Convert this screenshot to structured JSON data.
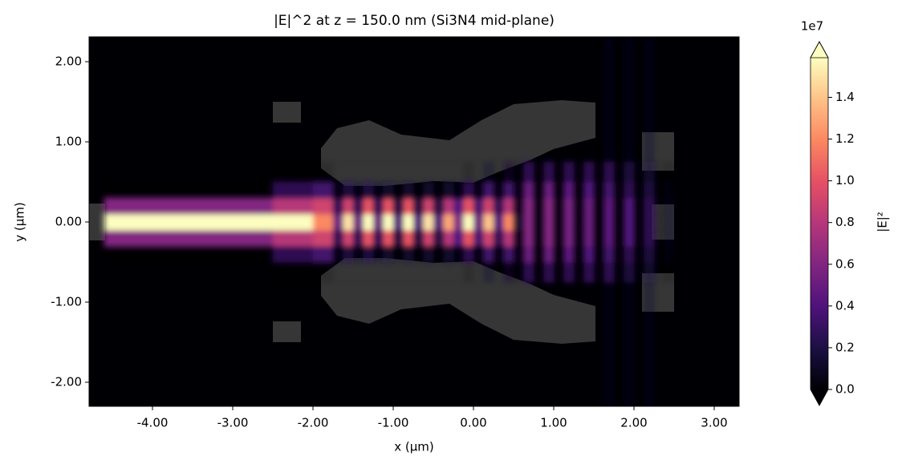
{
  "chart_data": {
    "type": "heatmap",
    "title": "|E|^2 at z = 150.0 nm (Si3N4 mid-plane)",
    "x_label": "x (µm)",
    "y_label": "y (µm)",
    "xlim": [
      -4.79,
      3.31
    ],
    "ylim": [
      -2.3,
      2.31
    ],
    "xticks": [
      {
        "value": -4,
        "label": "-4.00"
      },
      {
        "value": -3,
        "label": "-3.00"
      },
      {
        "value": -2,
        "label": "-2.00"
      },
      {
        "value": -1,
        "label": "-1.00"
      },
      {
        "value": 0,
        "label": "0.00"
      },
      {
        "value": 1,
        "label": "1.00"
      },
      {
        "value": 2,
        "label": "2.00"
      },
      {
        "value": 3,
        "label": "3.00"
      }
    ],
    "yticks": [
      {
        "value": -2,
        "label": "-2.00"
      },
      {
        "value": -1,
        "label": "-1.00"
      },
      {
        "value": 0,
        "label": "0.00"
      },
      {
        "value": 1,
        "label": "1.00"
      },
      {
        "value": 2,
        "label": "2.00"
      }
    ],
    "x": [
      -4.79,
      -4.6,
      -2.5,
      -2.0,
      -1.75,
      -1.625,
      -1.5,
      -1.375,
      -1.25,
      -1.125,
      -1.0,
      -0.875,
      -0.75,
      -0.625,
      -0.5,
      -0.375,
      -0.25,
      -0.125,
      0,
      0.125,
      0.25,
      0.375,
      0.5,
      0.625,
      0.75,
      0.875,
      1.0,
      1.125,
      1.25,
      1.375,
      1.5,
      1.625,
      1.75,
      1.875,
      2.0,
      2.125,
      2.25,
      2.375,
      2.5,
      3.31
    ],
    "y": [
      -2.3,
      -0.75,
      -0.5,
      -0.3,
      -0.1,
      0.1,
      0.3,
      0.5,
      0.75,
      2.31
    ],
    "values": [
      [
        0,
        0,
        0,
        0,
        0,
        0,
        0,
        0,
        0,
        0,
        0,
        0,
        0,
        0,
        0,
        0,
        0,
        0,
        0,
        0,
        0,
        0,
        0,
        0,
        0,
        0,
        0,
        0,
        0,
        0,
        0,
        0.1,
        0,
        0.1,
        0,
        0.1,
        0,
        0,
        0
      ],
      [
        0,
        0,
        0.05,
        0.05,
        0,
        0,
        0,
        0,
        0,
        0,
        0,
        0,
        0,
        0,
        0,
        0,
        0,
        0.05,
        0,
        0.1,
        0,
        0.15,
        0.05,
        0.3,
        0.03,
        0.3,
        0.03,
        0.3,
        0.03,
        0.3,
        0.02,
        0.3,
        0.02,
        0.25,
        0.02,
        0.2,
        0.02,
        0.05,
        0
      ],
      [
        0,
        0.05,
        0.3,
        0.35,
        0.1,
        0.25,
        0.1,
        0.25,
        0.1,
        0.2,
        0.05,
        0.2,
        0.05,
        0.2,
        0.05,
        0.2,
        0.1,
        0.3,
        0.1,
        0.35,
        0.1,
        0.35,
        0.1,
        0.5,
        0.05,
        0.5,
        0.05,
        0.45,
        0.05,
        0.4,
        0.05,
        0.35,
        0.05,
        0.3,
        0.05,
        0.25,
        0.03,
        0.08,
        0
      ],
      [
        0,
        0.6,
        0.8,
        0.9,
        0.3,
        0.9,
        0.3,
        1.0,
        0.3,
        1.0,
        0.25,
        1.0,
        0.25,
        0.9,
        0.25,
        0.8,
        0.4,
        1.0,
        0.35,
        0.9,
        0.3,
        0.8,
        0.15,
        0.6,
        0.1,
        0.6,
        0.1,
        0.55,
        0.1,
        0.5,
        0.05,
        0.45,
        0.05,
        0.4,
        0.05,
        0.3,
        0.05,
        0.1,
        0
      ],
      [
        0,
        1.59,
        1.59,
        1.2,
        0.5,
        1.5,
        0.5,
        1.59,
        0.5,
        1.59,
        0.4,
        1.59,
        0.4,
        1.5,
        0.4,
        1.3,
        0.6,
        1.59,
        0.5,
        1.4,
        0.4,
        1.2,
        0.2,
        0.6,
        0.1,
        0.6,
        0.1,
        0.55,
        0.1,
        0.5,
        0.05,
        0.45,
        0.05,
        0.4,
        0.05,
        0.3,
        0.05,
        0.1,
        0
      ],
      [
        0,
        0.6,
        0.8,
        0.9,
        0.3,
        0.9,
        0.3,
        1.0,
        0.3,
        1.0,
        0.25,
        1.0,
        0.25,
        0.9,
        0.25,
        0.8,
        0.4,
        1.0,
        0.35,
        0.9,
        0.3,
        0.8,
        0.15,
        0.6,
        0.1,
        0.6,
        0.1,
        0.55,
        0.1,
        0.5,
        0.05,
        0.45,
        0.05,
        0.4,
        0.05,
        0.3,
        0.05,
        0.1,
        0
      ],
      [
        0,
        0.05,
        0.3,
        0.35,
        0.1,
        0.25,
        0.1,
        0.25,
        0.1,
        0.2,
        0.05,
        0.2,
        0.05,
        0.2,
        0.05,
        0.2,
        0.1,
        0.3,
        0.1,
        0.35,
        0.1,
        0.35,
        0.1,
        0.5,
        0.05,
        0.5,
        0.05,
        0.45,
        0.05,
        0.4,
        0.05,
        0.35,
        0.05,
        0.3,
        0.05,
        0.25,
        0.03,
        0.08,
        0
      ],
      [
        0,
        0,
        0.05,
        0.05,
        0,
        0,
        0,
        0,
        0,
        0,
        0,
        0,
        0,
        0,
        0,
        0,
        0,
        0.05,
        0,
        0.1,
        0,
        0.15,
        0.05,
        0.3,
        0.03,
        0.3,
        0.03,
        0.3,
        0.03,
        0.3,
        0.02,
        0.3,
        0.02,
        0.25,
        0.02,
        0.2,
        0.02,
        0.05,
        0
      ],
      [
        0,
        0,
        0,
        0,
        0,
        0,
        0,
        0,
        0,
        0,
        0,
        0,
        0,
        0,
        0,
        0,
        0,
        0,
        0,
        0,
        0,
        0,
        0,
        0,
        0,
        0,
        0,
        0,
        0,
        0,
        0,
        0.1,
        0,
        0.1,
        0,
        0.1,
        0,
        0,
        0
      ]
    ],
    "colormap": [
      "#000004",
      "#1c1044",
      "#4f127b",
      "#812581",
      "#b5367a",
      "#e55064",
      "#fb8761",
      "#fec287",
      "#fcfdbf"
    ],
    "colorbar": {
      "label": "|E|²",
      "offset_label": "1e7",
      "lim": [
        0,
        1.59
      ],
      "ticks": [
        {
          "value": 0,
          "label": "0.0"
        },
        0.2,
        0.4,
        0.6,
        0.8,
        {
          "value": 1,
          "label": "1.0"
        },
        1.2,
        1.4
      ]
    }
  }
}
